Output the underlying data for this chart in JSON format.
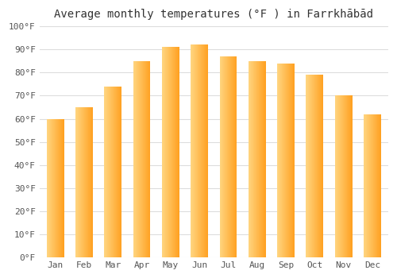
{
  "title": "Average monthly temperatures (°F ) in Farrkhābād",
  "months": [
    "Jan",
    "Feb",
    "Mar",
    "Apr",
    "May",
    "Jun",
    "Jul",
    "Aug",
    "Sep",
    "Oct",
    "Nov",
    "Dec"
  ],
  "values": [
    60,
    65,
    74,
    85,
    91,
    92,
    87,
    85,
    84,
    79,
    70,
    62
  ],
  "bar_color_left": "#FFD580",
  "bar_color_right": "#FFA020",
  "ylim": [
    0,
    100
  ],
  "yticks": [
    0,
    10,
    20,
    30,
    40,
    50,
    60,
    70,
    80,
    90,
    100
  ],
  "ytick_labels": [
    "0°F",
    "10°F",
    "20°F",
    "30°F",
    "40°F",
    "50°F",
    "60°F",
    "70°F",
    "80°F",
    "90°F",
    "100°F"
  ],
  "bg_color": "#ffffff",
  "grid_color": "#dddddd",
  "figsize": [
    5.0,
    3.5
  ],
  "dpi": 100,
  "title_fontsize": 10,
  "tick_fontsize": 8,
  "bar_width": 0.6
}
